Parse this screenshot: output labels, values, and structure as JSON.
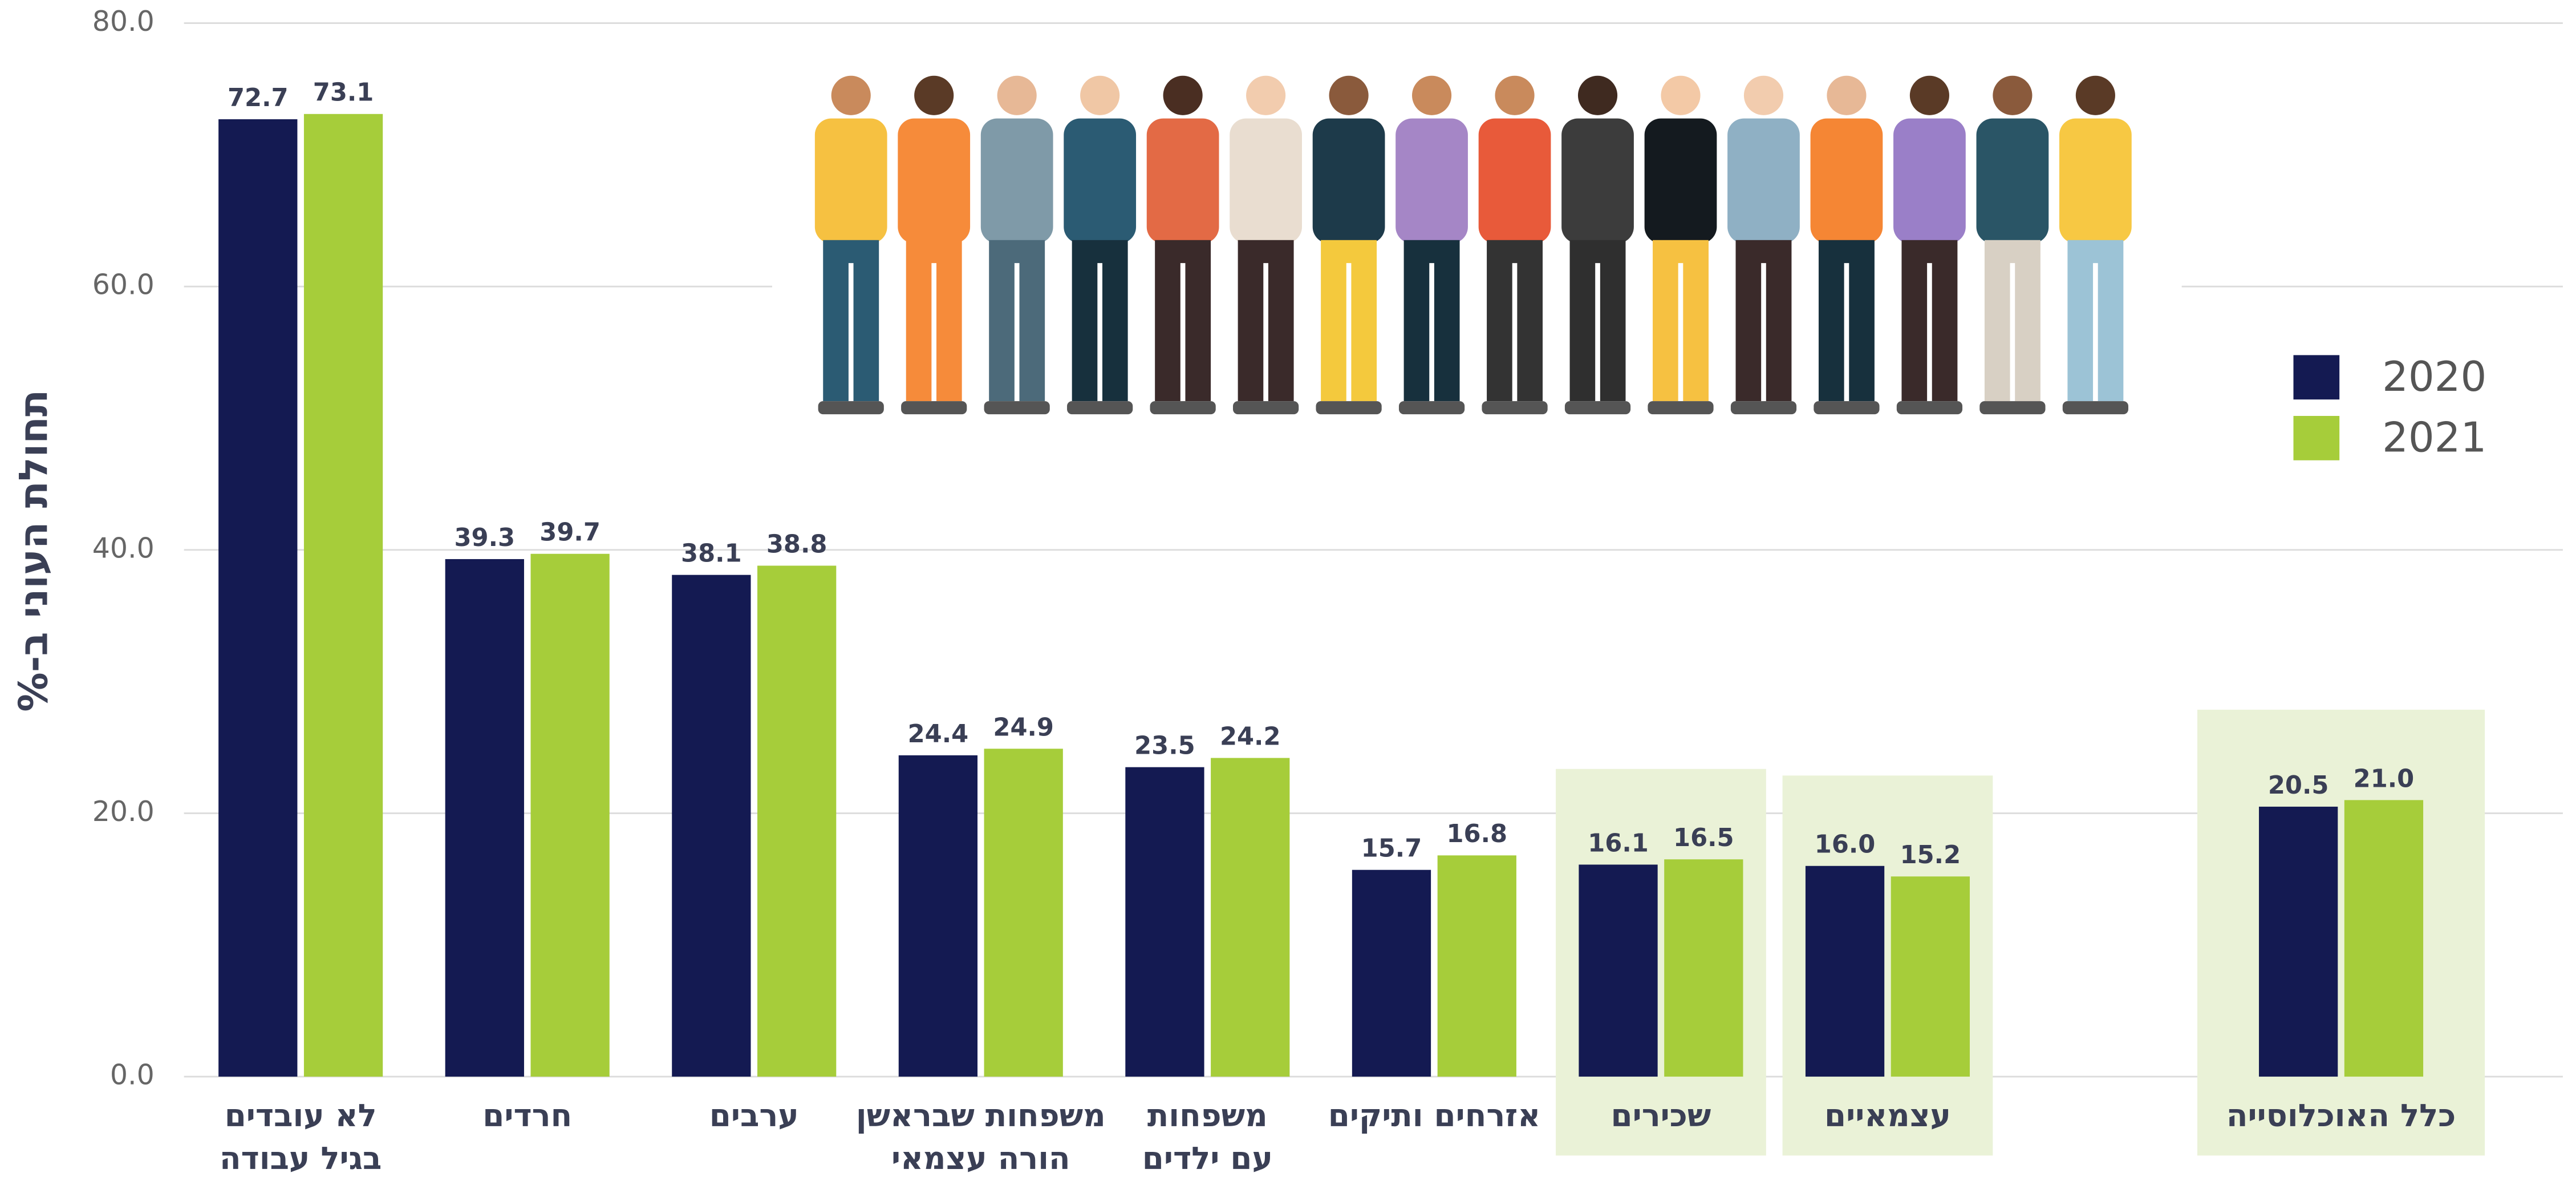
{
  "chart_data": {
    "type": "bar",
    "y_label": "תחולת העוני ב-%",
    "categories": [
      [
        "לא עובדים",
        "בגיל עבודה"
      ],
      [
        "חרדים"
      ],
      [
        "ערבים"
      ],
      [
        "משפחות שבראשן",
        "הורה עצמאי"
      ],
      [
        "משפחות",
        "עם ילדים"
      ],
      [
        "אזרחים ותיקים"
      ],
      [
        "שכירים"
      ],
      [
        "עצמאיים"
      ],
      [
        "כלל האוכלוסייה"
      ]
    ],
    "series": [
      {
        "name": "2020",
        "color": "#141a52",
        "values": [
          72.7,
          39.3,
          38.1,
          24.4,
          23.5,
          15.7,
          16.1,
          16.0,
          20.5
        ],
        "value_labels": [
          "72.7",
          "39.3",
          "38.1",
          "24.4",
          "23.5",
          "15.7",
          "16.1",
          "16.0",
          "20.5"
        ]
      },
      {
        "name": "2021",
        "color": "#a6cd3a",
        "values": [
          73.1,
          39.7,
          38.8,
          24.9,
          24.2,
          16.8,
          16.5,
          15.2,
          21.0
        ],
        "value_labels": [
          "73.1",
          "39.7",
          "38.8",
          "24.9",
          "24.2",
          "16.8",
          "16.5",
          "15.2",
          "21.0"
        ]
      }
    ],
    "highlighted_categories": [
      6,
      7,
      8
    ],
    "highlight_color": "#eaf2d7",
    "ylim": [
      0,
      80
    ],
    "yticks": [
      {
        "value": 0,
        "label": "0.0"
      },
      {
        "value": 20,
        "label": "20.0"
      },
      {
        "value": 40,
        "label": "40.0"
      },
      {
        "value": 60,
        "label": "60.0"
      },
      {
        "value": 80,
        "label": "80.0"
      }
    ],
    "grid": true,
    "legend": "right"
  }
}
